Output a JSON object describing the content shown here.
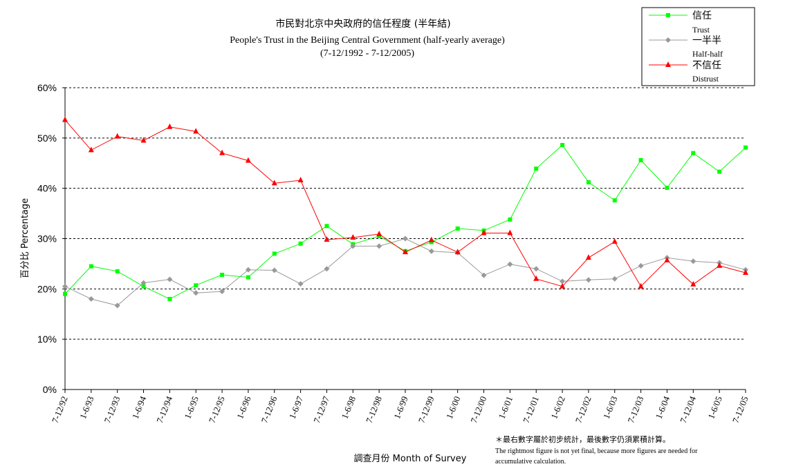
{
  "chart_data": {
    "type": "line",
    "title": "市民對北京中央政府的信任程度 (半年結)",
    "subtitle": "People's Trust in the Beijing Central Government (half-yearly average)",
    "subtitle2": "(7-12/1992 - 7-12/2005)",
    "xlabel": "調查月份 Month of Survey",
    "ylabel": "百分比 Percentage",
    "ylim": [
      0,
      60
    ],
    "yticks": [
      "0%",
      "10%",
      "20%",
      "30%",
      "40%",
      "50%",
      "60%"
    ],
    "grid": true,
    "legend_position": "top-right",
    "categories": [
      "7-12/92",
      "1-6/93",
      "7-12/93",
      "1-6/94",
      "7-12/94",
      "1-6/95",
      "7-12/95",
      "1-6/96",
      "7-12/96",
      "1-6/97",
      "7-12/97",
      "1-6/98",
      "7-12/98",
      "1-6/99",
      "7-12/99",
      "1-6/00",
      "7-12/00",
      "1-6/01",
      "7-12/01",
      "1-6/02",
      "7-12/02",
      "1-6/03",
      "7-12/03",
      "1-6/04",
      "7-12/04",
      "1-6/05",
      "7-12/05"
    ],
    "series": [
      {
        "name": "信任",
        "name_en": "Trust",
        "color": "#00ff00",
        "marker": "square",
        "values": [
          19.0,
          24.5,
          23.5,
          20.5,
          18.0,
          20.7,
          22.8,
          22.3,
          27.0,
          29.0,
          32.5,
          28.9,
          30.5,
          27.5,
          29.3,
          32.0,
          31.6,
          33.8,
          43.9,
          48.6,
          41.2,
          37.6,
          45.6,
          40.1,
          47.0,
          43.3,
          48.1
        ]
      },
      {
        "name": "一半半",
        "name_en": "Half-half",
        "color": "#999999",
        "marker": "diamond",
        "values": [
          20.5,
          18.0,
          16.7,
          21.2,
          21.9,
          19.2,
          19.5,
          23.8,
          23.7,
          21.0,
          24.0,
          28.5,
          28.5,
          30.0,
          27.5,
          27.2,
          22.7,
          24.9,
          24.0,
          21.5,
          21.8,
          22.0,
          24.6,
          26.2,
          25.5,
          25.2,
          23.8
        ]
      },
      {
        "name": "不信任",
        "name_en": "Distrust",
        "color": "#ff0000",
        "marker": "triangle",
        "values": [
          53.6,
          47.6,
          50.3,
          49.5,
          52.2,
          51.3,
          47.0,
          45.5,
          41.0,
          41.6,
          29.8,
          30.2,
          30.9,
          27.3,
          29.7,
          27.3,
          31.1,
          31.1,
          22.0,
          20.5,
          26.2,
          29.4,
          20.5,
          25.7,
          20.9,
          24.6,
          23.2
        ]
      }
    ]
  },
  "footnote": {
    "zh": "＊最右數字屬於初步統計，最後數字仍須累積計算。",
    "en_line1": "The rightmost figure is not yet final, because more figures are needed for",
    "en_line2": "accumulative calculation."
  }
}
